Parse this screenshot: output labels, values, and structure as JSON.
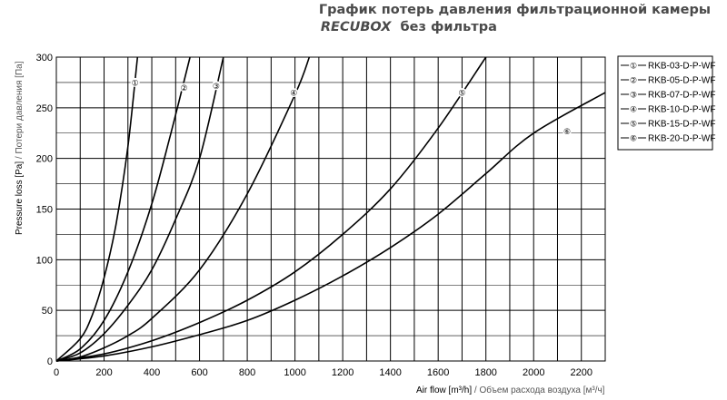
{
  "header": {
    "title_line1": "График потерь давления фильтрационной камеры",
    "title_brand": "RECUBOX",
    "title_rest": "без фильтра"
  },
  "chart_data": {
    "type": "line",
    "title": "График потерь давления фильтрационной камеры RECUBOX без фильтра",
    "xlabel_en": "Air flow [m³/h]",
    "xlabel_sep": " / ",
    "xlabel_ru": "Объем расхода воздуха [м³/ч]",
    "ylabel_en": "Pressure loss [Pa]",
    "ylabel_sep": " / ",
    "ylabel_ru": "Потери давления [Па]",
    "xlim": [
      0,
      2300
    ],
    "ylim": [
      0,
      300
    ],
    "x_ticks": [
      0,
      200,
      400,
      600,
      800,
      1000,
      1200,
      1400,
      1600,
      1800,
      2000,
      2200
    ],
    "y_ticks": [
      0,
      50,
      100,
      150,
      200,
      250,
      300
    ],
    "x_minor_step": 100,
    "y_minor_step": 25,
    "grid": true,
    "legend_position": "right",
    "series": [
      {
        "name": "RKB-03-D-P-WF",
        "marker": "①",
        "marker_at": [
          330,
          275
        ],
        "points": [
          [
            0,
            0
          ],
          [
            100,
            22
          ],
          [
            150,
            45
          ],
          [
            200,
            82
          ],
          [
            250,
            135
          ],
          [
            300,
            212
          ],
          [
            340,
            300
          ]
        ]
      },
      {
        "name": "RKB-05-D-P-WF",
        "marker": "②",
        "marker_at": [
          535,
          270
        ],
        "points": [
          [
            0,
            0
          ],
          [
            100,
            12
          ],
          [
            200,
            40
          ],
          [
            300,
            88
          ],
          [
            400,
            155
          ],
          [
            480,
            225
          ],
          [
            560,
            300
          ]
        ]
      },
      {
        "name": "RKB-07-D-P-WF",
        "marker": "③",
        "marker_at": [
          670,
          272
        ],
        "points": [
          [
            0,
            0
          ],
          [
            100,
            8
          ],
          [
            200,
            27
          ],
          [
            300,
            55
          ],
          [
            400,
            90
          ],
          [
            500,
            140
          ],
          [
            600,
            200
          ],
          [
            700,
            300
          ]
        ]
      },
      {
        "name": "RKB-10-D-P-WF",
        "marker": "④",
        "marker_at": [
          995,
          265
        ],
        "points": [
          [
            0,
            0
          ],
          [
            100,
            4
          ],
          [
            200,
            13
          ],
          [
            300,
            25
          ],
          [
            400,
            42
          ],
          [
            600,
            90
          ],
          [
            800,
            165
          ],
          [
            1000,
            263
          ],
          [
            1060,
            300
          ]
        ]
      },
      {
        "name": "RKB-15-D-P-WF",
        "marker": "⑤",
        "marker_at": [
          1700,
          265
        ],
        "points": [
          [
            0,
            0
          ],
          [
            200,
            7
          ],
          [
            400,
            20
          ],
          [
            600,
            38
          ],
          [
            800,
            60
          ],
          [
            1000,
            88
          ],
          [
            1200,
            125
          ],
          [
            1400,
            170
          ],
          [
            1600,
            230
          ],
          [
            1800,
            300
          ]
        ]
      },
      {
        "name": "RKB-20-D-P-WF",
        "marker": "⑥",
        "marker_at": [
          2140,
          227
        ],
        "points": [
          [
            0,
            0
          ],
          [
            200,
            5
          ],
          [
            400,
            14
          ],
          [
            600,
            26
          ],
          [
            800,
            40
          ],
          [
            1000,
            60
          ],
          [
            1200,
            84
          ],
          [
            1400,
            112
          ],
          [
            1600,
            145
          ],
          [
            1800,
            185
          ],
          [
            2000,
            225
          ],
          [
            2300,
            265
          ]
        ]
      }
    ]
  }
}
